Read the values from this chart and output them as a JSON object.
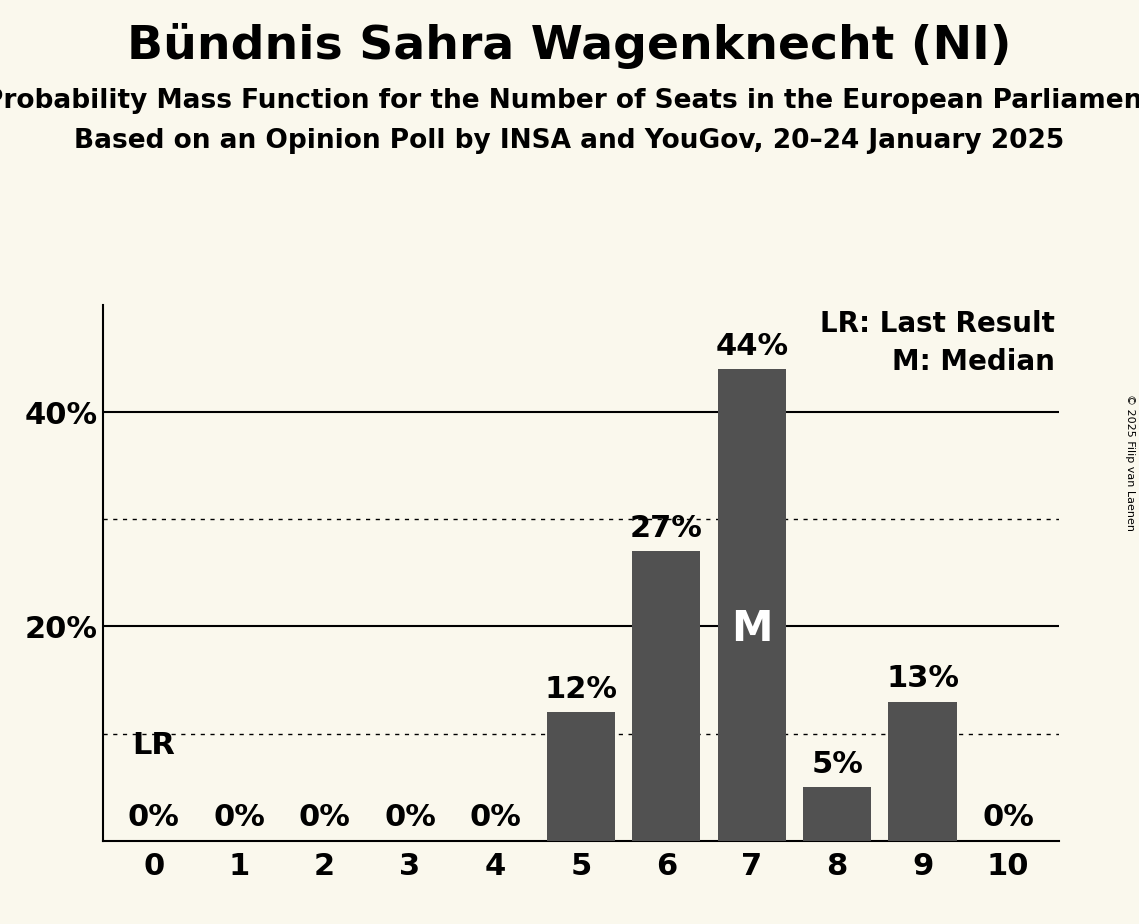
{
  "title": "Bündnis Sahra Wagenknecht (NI)",
  "subtitle1": "Probability Mass Function for the Number of Seats in the European Parliament",
  "subtitle2": "Based on an Opinion Poll by INSA and YouGov, 20–24 January 2025",
  "copyright": "© 2025 Filip van Laenen",
  "seats": [
    0,
    1,
    2,
    3,
    4,
    5,
    6,
    7,
    8,
    9,
    10
  ],
  "probabilities": [
    0,
    0,
    0,
    0,
    0,
    12,
    27,
    44,
    5,
    13,
    0
  ],
  "bar_color": "#515151",
  "background_color": "#faf8ed",
  "median_seat": 7,
  "lr_seat": 0,
  "legend_lr": "LR: Last Result",
  "legend_m": "M: Median",
  "ylim": [
    0,
    50
  ],
  "solid_gridlines": [
    20,
    40
  ],
  "dotted_gridlines": [
    10,
    30
  ],
  "title_fontsize": 34,
  "subtitle_fontsize": 19,
  "axis_tick_fontsize": 22,
  "bar_label_fontsize": 22,
  "legend_fontsize": 20,
  "lr_label_fontsize": 22,
  "median_label_fontsize": 30
}
